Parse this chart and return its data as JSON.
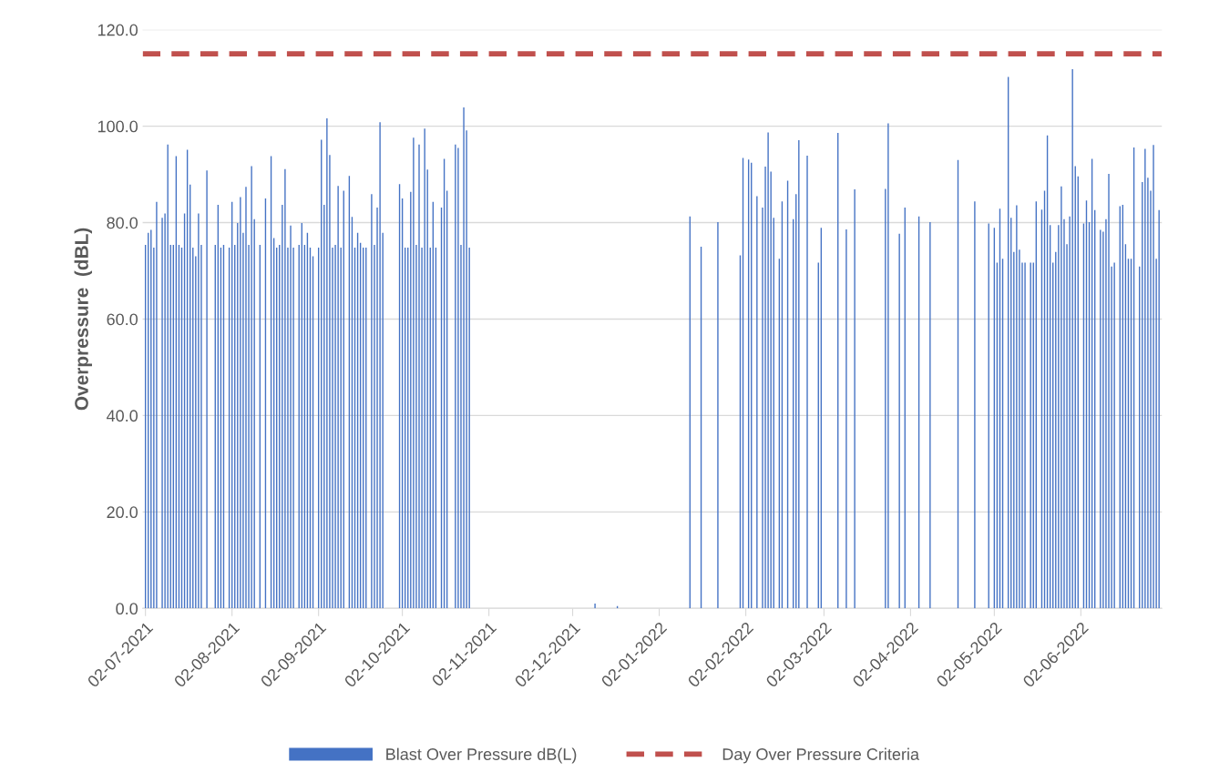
{
  "chart_data": {
    "type": "bar",
    "ylabel": "Overpressure  (dBL)",
    "x": [
      "2021-07-02",
      "2021-07-03",
      "2021-07-04",
      "2021-07-05",
      "2021-07-06",
      "2021-07-08",
      "2021-07-09",
      "2021-07-10",
      "2021-07-11",
      "2021-07-12",
      "2021-07-13",
      "2021-07-14",
      "2021-07-15",
      "2021-07-16",
      "2021-07-17",
      "2021-07-18",
      "2021-07-19",
      "2021-07-20",
      "2021-07-21",
      "2021-07-22",
      "2021-07-24",
      "2021-07-27",
      "2021-07-28",
      "2021-07-29",
      "2021-07-30",
      "2021-08-01",
      "2021-08-02",
      "2021-08-03",
      "2021-08-04",
      "2021-08-05",
      "2021-08-06",
      "2021-08-07",
      "2021-08-08",
      "2021-08-09",
      "2021-08-10",
      "2021-08-12",
      "2021-08-14",
      "2021-08-16",
      "2021-08-17",
      "2021-08-18",
      "2021-08-19",
      "2021-08-20",
      "2021-08-21",
      "2021-08-22",
      "2021-08-23",
      "2021-08-24",
      "2021-08-26",
      "2021-08-27",
      "2021-08-28",
      "2021-08-29",
      "2021-08-30",
      "2021-08-31",
      "2021-09-02",
      "2021-09-03",
      "2021-09-04",
      "2021-09-05",
      "2021-09-06",
      "2021-09-07",
      "2021-09-08",
      "2021-09-09",
      "2021-09-10",
      "2021-09-11",
      "2021-09-13",
      "2021-09-14",
      "2021-09-15",
      "2021-09-16",
      "2021-09-17",
      "2021-09-18",
      "2021-09-19",
      "2021-09-21",
      "2021-09-22",
      "2021-09-23",
      "2021-09-24",
      "2021-09-25",
      "2021-10-01",
      "2021-10-02",
      "2021-10-03",
      "2021-10-04",
      "2021-10-05",
      "2021-10-06",
      "2021-10-07",
      "2021-10-08",
      "2021-10-09",
      "2021-10-10",
      "2021-10-11",
      "2021-10-12",
      "2021-10-13",
      "2021-10-14",
      "2021-10-16",
      "2021-10-17",
      "2021-10-18",
      "2021-10-21",
      "2021-10-22",
      "2021-10-23",
      "2021-10-24",
      "2021-10-25",
      "2021-10-26",
      "2021-12-10",
      "2021-12-18",
      "2022-01-13",
      "2022-01-17",
      "2022-01-23",
      "2022-01-31",
      "2022-02-01",
      "2022-02-03",
      "2022-02-04",
      "2022-02-06",
      "2022-02-08",
      "2022-02-09",
      "2022-02-10",
      "2022-02-11",
      "2022-02-12",
      "2022-02-14",
      "2022-02-15",
      "2022-02-17",
      "2022-02-19",
      "2022-02-20",
      "2022-02-21",
      "2022-02-24",
      "2022-02-28",
      "2022-03-01",
      "2022-03-07",
      "2022-03-10",
      "2022-03-13",
      "2022-03-24",
      "2022-03-25",
      "2022-03-29",
      "2022-03-31",
      "2022-04-05",
      "2022-04-09",
      "2022-04-19",
      "2022-04-25",
      "2022-04-30",
      "2022-05-02",
      "2022-05-03",
      "2022-05-04",
      "2022-05-05",
      "2022-05-07",
      "2022-05-08",
      "2022-05-09",
      "2022-05-10",
      "2022-05-11",
      "2022-05-12",
      "2022-05-13",
      "2022-05-15",
      "2022-05-16",
      "2022-05-17",
      "2022-05-19",
      "2022-05-20",
      "2022-05-21",
      "2022-05-22",
      "2022-05-23",
      "2022-05-24",
      "2022-05-25",
      "2022-05-26",
      "2022-05-27",
      "2022-05-28",
      "2022-05-29",
      "2022-05-30",
      "2022-05-31",
      "2022-06-01",
      "2022-06-03",
      "2022-06-04",
      "2022-06-05",
      "2022-06-06",
      "2022-06-07",
      "2022-06-09",
      "2022-06-10",
      "2022-06-11",
      "2022-06-12",
      "2022-06-13",
      "2022-06-14",
      "2022-06-16",
      "2022-06-17",
      "2022-06-18",
      "2022-06-19",
      "2022-06-20",
      "2022-06-21",
      "2022-06-23",
      "2022-06-24",
      "2022-06-25",
      "2022-06-26",
      "2022-06-27",
      "2022-06-28",
      "2022-06-29",
      "2022-06-30"
    ],
    "series": [
      {
        "name": "Blast Over Pressure dB(L)",
        "color": "#4472c4",
        "values": [
          75.4,
          77.9,
          78.5,
          74.8,
          84.3,
          81.0,
          81.9,
          96.2,
          75.4,
          75.4,
          93.8,
          75.4,
          74.8,
          81.9,
          95.1,
          87.9,
          74.8,
          73.0,
          81.9,
          75.4,
          90.8,
          75.4,
          83.7,
          74.8,
          75.4,
          74.8,
          84.3,
          75.4,
          79.9,
          85.3,
          77.9,
          87.4,
          75.4,
          91.7,
          80.7,
          75.4,
          85.0,
          93.8,
          76.8,
          74.8,
          75.4,
          83.7,
          91.1,
          74.8,
          79.4,
          74.8,
          75.4,
          79.9,
          75.4,
          77.9,
          74.8,
          73.0,
          74.8,
          97.2,
          83.7,
          101.6,
          94.0,
          74.8,
          75.4,
          87.6,
          74.8,
          86.6,
          89.7,
          81.2,
          74.8,
          77.9,
          75.8,
          74.8,
          74.8,
          85.9,
          75.4,
          83.1,
          100.8,
          77.9,
          88.0,
          85.0,
          74.8,
          74.8,
          86.4,
          97.6,
          75.4,
          96.2,
          74.8,
          99.5,
          91.0,
          74.8,
          84.3,
          74.8,
          83.1,
          93.2,
          86.6,
          96.2,
          95.5,
          75.4,
          103.9,
          99.1,
          74.8,
          1.0,
          0.5,
          81.3,
          75.0,
          80.1,
          73.2,
          93.4,
          93.1,
          92.4,
          85.5,
          83.1,
          91.6,
          98.7,
          90.6,
          81.0,
          72.5,
          84.4,
          88.7,
          80.7,
          85.9,
          97.1,
          93.9,
          71.7,
          78.9,
          98.6,
          78.6,
          86.9,
          87.0,
          100.6,
          77.7,
          83.1,
          81.3,
          80.1,
          93.0,
          84.4,
          79.8,
          78.9,
          71.7,
          82.9,
          72.5,
          110.2,
          81.0,
          73.9,
          83.6,
          74.4,
          71.7,
          71.7,
          71.7,
          71.7,
          84.4,
          82.7,
          86.6,
          98.1,
          79.5,
          71.7,
          73.9,
          79.5,
          87.5,
          80.7,
          75.5,
          81.3,
          111.8,
          91.7,
          89.6,
          79.8,
          84.6,
          80.1,
          93.2,
          82.6,
          78.5,
          78.1,
          80.7,
          90.1,
          70.9,
          71.7,
          83.4,
          83.7,
          75.5,
          72.5,
          72.5,
          95.6,
          70.9,
          88.4,
          95.3,
          89.3,
          86.6,
          96.1,
          72.5,
          82.6
        ]
      }
    ],
    "xlim": [
      "2021-07-01",
      "2022-07-01"
    ],
    "xticks": [
      {
        "value": "2021-07-02",
        "label": "02-07-2021"
      },
      {
        "value": "2021-08-02",
        "label": "02-08-2021"
      },
      {
        "value": "2021-09-02",
        "label": "02-09-2021"
      },
      {
        "value": "2021-10-02",
        "label": "02-10-2021"
      },
      {
        "value": "2021-11-02",
        "label": "02-11-2021"
      },
      {
        "value": "2021-12-02",
        "label": "02-12-2021"
      },
      {
        "value": "2022-01-02",
        "label": "02-01-2022"
      },
      {
        "value": "2022-02-02",
        "label": "02-02-2022"
      },
      {
        "value": "2022-03-02",
        "label": "02-03-2022"
      },
      {
        "value": "2022-04-02",
        "label": "02-04-2022"
      },
      {
        "value": "2022-05-02",
        "label": "02-05-2022"
      },
      {
        "value": "2022-06-02",
        "label": "02-06-2022"
      }
    ],
    "ylim": [
      0,
      120
    ],
    "yticks": [
      {
        "value": 0,
        "label": "0.0"
      },
      {
        "value": 20,
        "label": "20.0"
      },
      {
        "value": 40,
        "label": "40.0"
      },
      {
        "value": 60,
        "label": "60.0"
      },
      {
        "value": 80,
        "label": "80.0"
      },
      {
        "value": 100,
        "label": "100.0"
      },
      {
        "value": 120,
        "label": "120.0"
      }
    ],
    "ref_lines": [
      {
        "axis": "y",
        "value": 115,
        "label": "Day Over Pressure Criteria",
        "color": "#c0504d",
        "line_style": "dashed"
      }
    ],
    "grid": "y",
    "legend": "bottom"
  }
}
